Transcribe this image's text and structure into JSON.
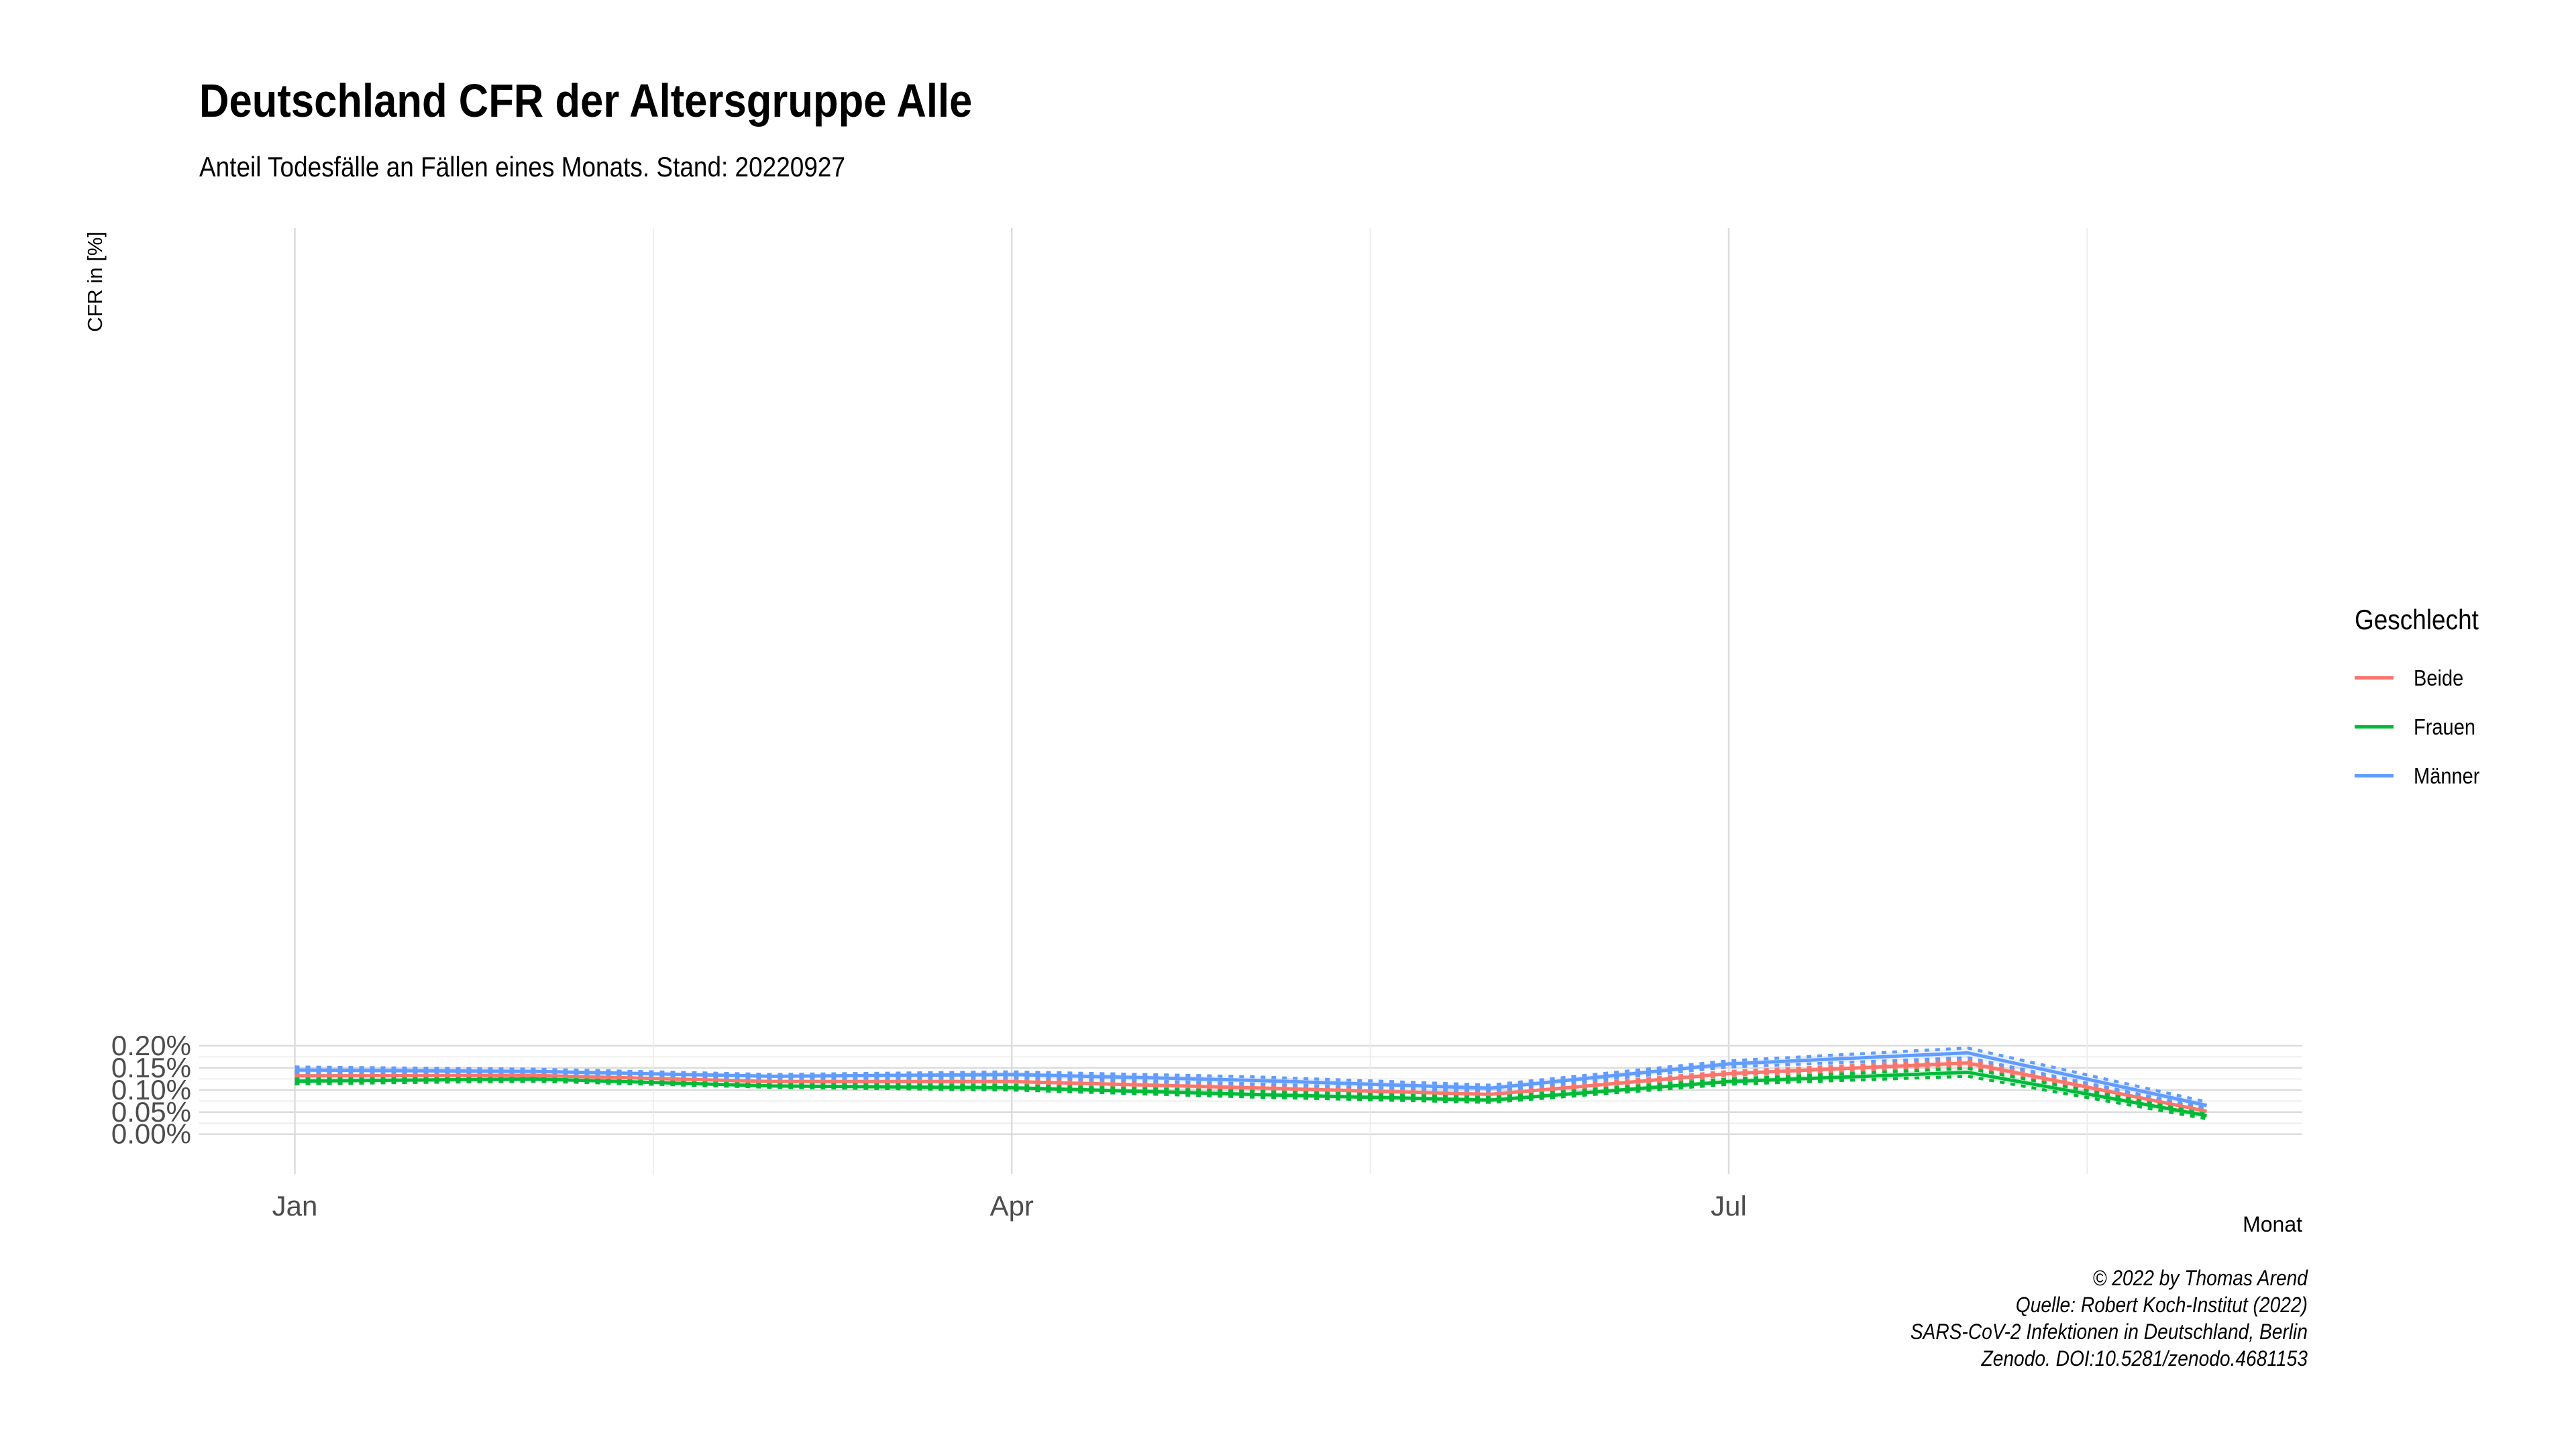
{
  "title": "Deutschland CFR der Altersgruppe Alle",
  "subtitle": "Anteil Todesfälle an Fällen eines Monats. Stand: 20220927",
  "caption": [
    "© 2022 by Thomas Arend",
    "Quelle: Robert Koch-Institut (2022)",
    "SARS-CoV-2 Infektionen in Deutschland, Berlin",
    "Zenodo. DOI:10.5281/zenodo.4681153"
  ],
  "legend": {
    "title": "Geschlecht",
    "items": [
      {
        "label": "Beide",
        "color": "#F8766D"
      },
      {
        "label": "Frauen",
        "color": "#00BA38"
      },
      {
        "label": "Männer",
        "color": "#619CFF"
      }
    ]
  },
  "chart_data": {
    "type": "line",
    "title": "Deutschland CFR der Altersgruppe Alle",
    "subtitle": "Anteil Todesfälle an Fällen eines Monats. Stand: 20220927",
    "xlabel": "Monat",
    "ylabel": "CFR in [%]",
    "x_months": [
      1,
      2,
      3,
      4,
      5,
      6,
      7,
      8,
      9
    ],
    "x_ticks": [
      {
        "month": 1,
        "label": "Jan"
      },
      {
        "month": 4,
        "label": "Apr"
      },
      {
        "month": 7,
        "label": "Jul"
      }
    ],
    "y_ticks": [
      "0.00%",
      "0.05%",
      "0.10%",
      "0.15%",
      "0.20%"
    ],
    "ylim": [
      -0.0009,
      0.0205
    ],
    "grid": true,
    "legend_position": "right",
    "series": [
      {
        "name": "Beide",
        "color": "#F8766D",
        "values": [
          0.00132,
          0.00133,
          0.00119,
          0.00119,
          0.00105,
          0.0009,
          0.00137,
          0.00161,
          0.00052
        ],
        "lower": [
          0.00128,
          0.0013,
          0.00117,
          0.00116,
          0.00099,
          0.00086,
          0.00133,
          0.00154,
          0.00048
        ],
        "upper": [
          0.00137,
          0.00136,
          0.00122,
          0.00123,
          0.00111,
          0.00094,
          0.00142,
          0.00168,
          0.00056
        ]
      },
      {
        "name": "Frauen",
        "color": "#00BA38",
        "values": [
          0.0012,
          0.00125,
          0.00109,
          0.00105,
          0.0009,
          0.00077,
          0.00119,
          0.0014,
          0.00042
        ],
        "lower": [
          0.00114,
          0.0012,
          0.00106,
          0.001,
          0.00084,
          0.00072,
          0.00113,
          0.00131,
          0.00035
        ],
        "upper": [
          0.00126,
          0.00129,
          0.00113,
          0.0011,
          0.00097,
          0.00083,
          0.00125,
          0.00149,
          0.00048
        ]
      },
      {
        "name": "Männer",
        "color": "#619CFF",
        "values": [
          0.00145,
          0.00142,
          0.00131,
          0.00135,
          0.00122,
          0.00104,
          0.00159,
          0.00184,
          0.00065
        ],
        "lower": [
          0.00139,
          0.00137,
          0.00127,
          0.00129,
          0.00114,
          0.00098,
          0.00152,
          0.00173,
          0.00058
        ],
        "upper": [
          0.00152,
          0.00147,
          0.00135,
          0.00141,
          0.0013,
          0.00111,
          0.00166,
          0.00195,
          0.00073
        ]
      }
    ]
  }
}
